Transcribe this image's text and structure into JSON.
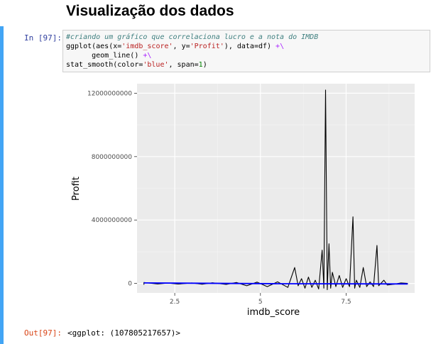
{
  "heading": "Visualização dos dados",
  "cell": {
    "in_prompt": "In [97]:",
    "code": {
      "comment": "#criando um gráfico que correlaciona lucro e a nota do IMDB",
      "line2_a": "ggplot(aes(x=",
      "line2_x": "'imdb_score'",
      "line2_b": ", y=",
      "line2_y": "'Profit'",
      "line2_c": "), data=df) ",
      "line2_op": "+\\",
      "line3_a": "      geom_line() ",
      "line3_op": "+\\",
      "line4_a": "stat_smooth(color=",
      "line4_color": "'blue'",
      "line4_b": ", span=",
      "line4_span": "1",
      "line4_c": ")"
    },
    "out_prompt": "Out[97]:",
    "output": "<ggplot: (107805217657)>"
  },
  "chart_data": {
    "type": "line",
    "xlabel": "imdb_score",
    "ylabel": "Profit",
    "xlim": [
      1.4,
      9.5
    ],
    "ylim": [
      -600000000,
      12600000000
    ],
    "x_ticks": [
      2.5,
      5,
      7.5
    ],
    "x_tick_labels": [
      "2.5",
      "5",
      "7.5"
    ],
    "y_ticks": [
      0,
      4000000000,
      8000000000,
      12000000000
    ],
    "y_tick_labels": [
      "0",
      "4000000000",
      "8000000000",
      "12000000000"
    ],
    "grid": true,
    "background": "#ebebeb",
    "series": [
      {
        "geom": "line",
        "color": "#000000",
        "points": [
          [
            1.6,
            -80000000
          ],
          [
            1.6,
            60000000
          ],
          [
            2.0,
            -30000000
          ],
          [
            2.3,
            20000000
          ],
          [
            2.6,
            -40000000
          ],
          [
            3.0,
            30000000
          ],
          [
            3.3,
            -50000000
          ],
          [
            3.6,
            40000000
          ],
          [
            4.0,
            -60000000
          ],
          [
            4.3,
            60000000
          ],
          [
            4.6,
            -150000000
          ],
          [
            4.9,
            80000000
          ],
          [
            5.2,
            -200000000
          ],
          [
            5.5,
            100000000
          ],
          [
            5.8,
            -250000000
          ],
          [
            6.0,
            1000000000
          ],
          [
            6.1,
            -150000000
          ],
          [
            6.2,
            300000000
          ],
          [
            6.3,
            -300000000
          ],
          [
            6.4,
            400000000
          ],
          [
            6.5,
            -250000000
          ],
          [
            6.6,
            200000000
          ],
          [
            6.7,
            -350000000
          ],
          [
            6.8,
            2100000000
          ],
          [
            6.85,
            -300000000
          ],
          [
            6.9,
            12200000000
          ],
          [
            6.95,
            -400000000
          ],
          [
            7.0,
            2500000000
          ],
          [
            7.05,
            -300000000
          ],
          [
            7.1,
            700000000
          ],
          [
            7.2,
            -200000000
          ],
          [
            7.3,
            500000000
          ],
          [
            7.4,
            -250000000
          ],
          [
            7.5,
            300000000
          ],
          [
            7.6,
            -200000000
          ],
          [
            7.7,
            4200000000
          ],
          [
            7.75,
            -300000000
          ],
          [
            7.8,
            200000000
          ],
          [
            7.9,
            -250000000
          ],
          [
            8.0,
            1000000000
          ],
          [
            8.1,
            -200000000
          ],
          [
            8.2,
            100000000
          ],
          [
            8.3,
            -200000000
          ],
          [
            8.4,
            2400000000
          ],
          [
            8.45,
            -150000000
          ],
          [
            8.6,
            200000000
          ],
          [
            8.7,
            -100000000
          ],
          [
            8.9,
            -50000000
          ],
          [
            9.1,
            30000000
          ],
          [
            9.3,
            0
          ]
        ]
      },
      {
        "geom": "smooth",
        "color": "#0000ff",
        "points": [
          [
            1.6,
            30000000
          ],
          [
            5.5,
            -20000000
          ],
          [
            9.3,
            -30000000
          ]
        ]
      }
    ]
  }
}
